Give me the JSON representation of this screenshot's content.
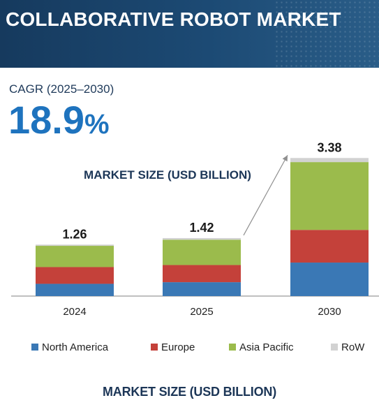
{
  "header": {
    "title": "COLLABORATIVE ROBOT MARKET"
  },
  "cagr": {
    "label": "CAGR (2025–2030)",
    "value": "18.9",
    "unit": "%"
  },
  "chart_data": {
    "type": "bar",
    "stacked": true,
    "title": "MARKET SIZE (USD BILLION)",
    "categories": [
      "2024",
      "2025",
      "2030"
    ],
    "totals": [
      "1.26",
      "1.42",
      "3.38"
    ],
    "series": [
      {
        "name": "North America",
        "color": "#3a78b5",
        "values": [
          0.3,
          0.34,
          0.82
        ]
      },
      {
        "name": "Europe",
        "color": "#c4413a",
        "values": [
          0.41,
          0.42,
          0.8
        ]
      },
      {
        "name": "Asia Pacific",
        "color": "#9bbb4c",
        "values": [
          0.52,
          0.62,
          1.66
        ]
      },
      {
        "name": "RoW",
        "color": "#d2d2d2",
        "values": [
          0.03,
          0.04,
          0.1
        ]
      }
    ],
    "legend_position": "bottom",
    "trend_arrow": {
      "from": "2025",
      "to": "2030"
    }
  },
  "footer": {
    "title": "MARKET SIZE (USD BILLION)"
  }
}
